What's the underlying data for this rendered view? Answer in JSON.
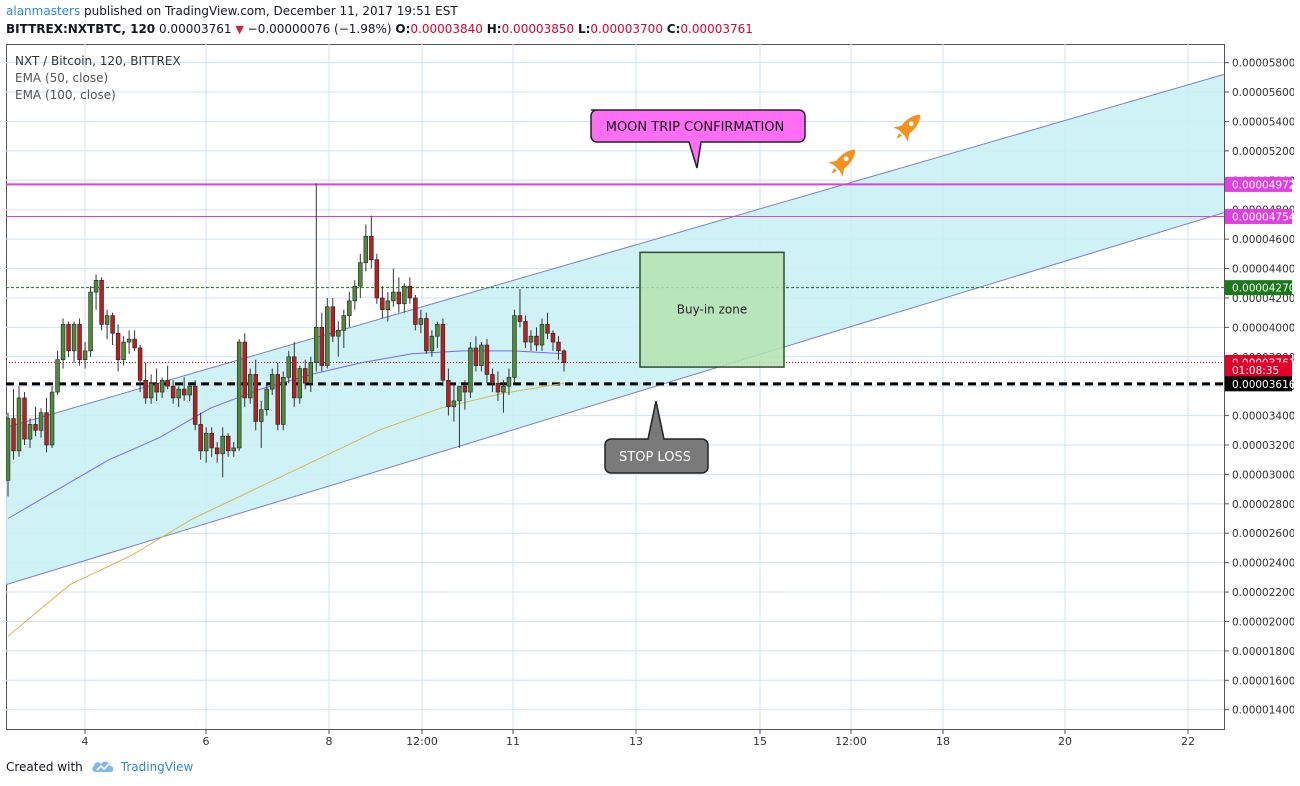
{
  "header": {
    "author": "alanmasters",
    "published": "published on TradingView.com, December 11, 2017 19:51 EST",
    "symbol": "BITTREX:NXTBTC, 120",
    "last": "0.00003761",
    "change": "−0.00000076 (−1.98%)",
    "o_label": "O:",
    "o": "0.00003840",
    "h_label": "H:",
    "h": "0.00003850",
    "l_label": "L:",
    "l": "0.00003700",
    "c_label": "C:",
    "c": "0.00003761"
  },
  "legend": {
    "pair": "NXT / Bitcoin, 120, BITTREX",
    "ema50": "EMA (50, close)",
    "ema100": "EMA (100, close)"
  },
  "annotations": {
    "moon": "MOON TRIP CONFIRMATION",
    "stop": "STOP LOSS",
    "buy": "Buy-in zone"
  },
  "footer": {
    "created_with": "Created with",
    "brand": "TradingView"
  },
  "colors": {
    "up": "#4e8a3a",
    "down": "#b8211f",
    "ema50": "#7b68ee",
    "ema100": "#d9b84a",
    "channel": "#7b7fc8",
    "channelFill": "#c9f1f4",
    "magenta": "#e040e0",
    "moonBox": "#ff6ef5",
    "stopBox": "#7a7a7a",
    "buyBox": "#b5e3b0",
    "rocket": "#f5921e"
  },
  "chart_data": {
    "type": "candlestick",
    "x_tick_labels": [
      "4",
      "6",
      "8",
      "12:00",
      "11",
      "13",
      "15",
      "12:00",
      "18",
      "20",
      "22"
    ],
    "y_ticks": [
      1.4e-05,
      1.6e-05,
      1.8e-05,
      2e-05,
      2.2e-05,
      2.4e-05,
      2.6e-05,
      2.8e-05,
      3e-05,
      3.2e-05,
      3.4e-05,
      3.6e-05,
      3.8e-05,
      4e-05,
      4.2e-05,
      4.4e-05,
      4.6e-05,
      4.8e-05,
      5e-05,
      5.2e-05,
      5.4e-05,
      5.6e-05,
      5.8e-05
    ],
    "y_tick_labels": [
      "0.00001400",
      "0.00001600",
      "0.00001800",
      "0.00002000",
      "0.00002200",
      "0.00002400",
      "0.00002600",
      "0.00002800",
      "0.00003000",
      "0.00003200",
      "0.00003400",
      "0.00003600",
      "0.00003800",
      "0.00004000",
      "0.00004200",
      "0.00004400",
      "0.00004600",
      "0.00004800",
      "0.00005000",
      "0.00005200",
      "0.00005400",
      "0.00005600",
      "0.00005800"
    ],
    "ylim": [
      1.33e-05,
      5.92e-05
    ],
    "price_labels": [
      {
        "text": "0.00004972",
        "value": 4.972e-05,
        "color": "#e040e0"
      },
      {
        "text": "0.00004754",
        "value": 4.754e-05,
        "color": "#e040e0"
      },
      {
        "text": "0.00004270",
        "value": 4.27e-05,
        "color": "#1a7a1a"
      },
      {
        "text": "0.00003761",
        "value": 3.761e-05,
        "color": "#e0002a"
      },
      {
        "text": "01:08:35",
        "value": 3.616e-05,
        "color": "#e0002a"
      },
      {
        "text": "0.00003616",
        "value": 3.616e-05,
        "color": "#000000"
      }
    ],
    "candles": [
      [
        2.96e-05,
        3.42e-05,
        2.85e-05,
        3.38e-05
      ],
      [
        3.38e-05,
        3.58e-05,
        3.1e-05,
        3.16e-05
      ],
      [
        3.16e-05,
        3.6e-05,
        3.12e-05,
        3.52e-05
      ],
      [
        3.52e-05,
        3.56e-05,
        3.2e-05,
        3.24e-05
      ],
      [
        3.24e-05,
        3.38e-05,
        3.18e-05,
        3.34e-05
      ],
      [
        3.34e-05,
        3.46e-05,
        3.26e-05,
        3.3e-05
      ],
      [
        3.3e-05,
        3.45e-05,
        3.25e-05,
        3.42e-05
      ],
      [
        3.42e-05,
        3.52e-05,
        3.15e-05,
        3.2e-05
      ],
      [
        3.2e-05,
        3.6e-05,
        3.18e-05,
        3.56e-05
      ],
      [
        3.56e-05,
        3.84e-05,
        3.54e-05,
        3.78e-05
      ],
      [
        3.78e-05,
        4.06e-05,
        3.72e-05,
        4.02e-05
      ],
      [
        4.02e-05,
        4.04e-05,
        3.8e-05,
        3.84e-05
      ],
      [
        3.84e-05,
        4.04e-05,
        3.76e-05,
        4.02e-05
      ],
      [
        4.02e-05,
        4.06e-05,
        3.74e-05,
        3.78e-05
      ],
      [
        3.78e-05,
        3.9e-05,
        3.72e-05,
        3.84e-05
      ],
      [
        3.84e-05,
        4.28e-05,
        3.8e-05,
        4.24e-05
      ],
      [
        4.24e-05,
        4.36e-05,
        4.12e-05,
        4.32e-05
      ],
      [
        4.32e-05,
        4.34e-05,
        3.98e-05,
        4.02e-05
      ],
      [
        4.02e-05,
        4.12e-05,
        3.92e-05,
        4.08e-05
      ],
      [
        4.08e-05,
        4.1e-05,
        3.88e-05,
        3.96e-05
      ],
      [
        3.96e-05,
        4.02e-05,
        3.7e-05,
        3.78e-05
      ],
      [
        3.78e-05,
        3.94e-05,
        3.74e-05,
        3.9e-05
      ],
      [
        3.9e-05,
        3.98e-05,
        3.82e-05,
        3.92e-05
      ],
      [
        3.92e-05,
        3.98e-05,
        3.84e-05,
        3.86e-05
      ],
      [
        3.86e-05,
        3.88e-05,
        3.56e-05,
        3.64e-05
      ],
      [
        3.64e-05,
        3.76e-05,
        3.48e-05,
        3.52e-05
      ],
      [
        3.52e-05,
        3.68e-05,
        3.48e-05,
        3.62e-05
      ],
      [
        3.62e-05,
        3.72e-05,
        3.5e-05,
        3.56e-05
      ],
      [
        3.56e-05,
        3.66e-05,
        3.52e-05,
        3.64e-05
      ],
      [
        3.64e-05,
        3.74e-05,
        3.58e-05,
        3.6e-05
      ],
      [
        3.6e-05,
        3.64e-05,
        3.48e-05,
        3.52e-05
      ],
      [
        3.52e-05,
        3.6e-05,
        3.46e-05,
        3.58e-05
      ],
      [
        3.58e-05,
        3.66e-05,
        3.5e-05,
        3.54e-05
      ],
      [
        3.54e-05,
        3.62e-05,
        3.5e-05,
        3.6e-05
      ],
      [
        3.6e-05,
        3.64e-05,
        3.3e-05,
        3.34e-05
      ],
      [
        3.34e-05,
        3.42e-05,
        3.1e-05,
        3.16e-05
      ],
      [
        3.16e-05,
        3.32e-05,
        3.08e-05,
        3.28e-05
      ],
      [
        3.28e-05,
        3.32e-05,
        3.12e-05,
        3.18e-05
      ],
      [
        3.18e-05,
        3.22e-05,
        3.08e-05,
        3.14e-05
      ],
      [
        3.14e-05,
        3.32e-05,
        2.98e-05,
        3.26e-05
      ],
      [
        3.26e-05,
        3.28e-05,
        3.12e-05,
        3.16e-05
      ],
      [
        3.16e-05,
        3.22e-05,
        3.12e-05,
        3.18e-05
      ],
      [
        3.18e-05,
        3.92e-05,
        3.16e-05,
        3.9e-05
      ],
      [
        3.9e-05,
        3.96e-05,
        3.46e-05,
        3.52e-05
      ],
      [
        3.52e-05,
        3.72e-05,
        3.48e-05,
        3.68e-05
      ],
      [
        3.68e-05,
        3.78e-05,
        3.3e-05,
        3.36e-05
      ],
      [
        3.36e-05,
        3.5e-05,
        3.18e-05,
        3.44e-05
      ],
      [
        3.44e-05,
        3.62e-05,
        3.4e-05,
        3.58e-05
      ],
      [
        3.58e-05,
        3.72e-05,
        3.54e-05,
        3.68e-05
      ],
      [
        3.68e-05,
        3.76e-05,
        3.3e-05,
        3.34e-05
      ],
      [
        3.34e-05,
        3.7e-05,
        3.3e-05,
        3.66e-05
      ],
      [
        3.66e-05,
        3.84e-05,
        3.62e-05,
        3.8e-05
      ],
      [
        3.8e-05,
        3.9e-05,
        3.46e-05,
        3.52e-05
      ],
      [
        3.52e-05,
        3.74e-05,
        3.48e-05,
        3.72e-05
      ],
      [
        3.72e-05,
        3.78e-05,
        3.58e-05,
        3.62e-05
      ],
      [
        3.62e-05,
        3.8e-05,
        3.56e-05,
        3.76e-05
      ],
      [
        3.76e-05,
        4.98e-05,
        3.7e-05,
        4e-05
      ],
      [
        4e-05,
        4.1e-05,
        3.7e-05,
        3.74e-05
      ],
      [
        3.74e-05,
        4.2e-05,
        3.72e-05,
        4.14e-05
      ],
      [
        4.14e-05,
        4.2e-05,
        3.9e-05,
        3.94e-05
      ],
      [
        3.94e-05,
        4.04e-05,
        3.8e-05,
        3.98e-05
      ],
      [
        3.98e-05,
        4.12e-05,
        3.86e-05,
        4.08e-05
      ],
      [
        4.08e-05,
        4.24e-05,
        4e-05,
        4.18e-05
      ],
      [
        4.18e-05,
        4.32e-05,
        4.12e-05,
        4.28e-05
      ],
      [
        4.28e-05,
        4.5e-05,
        4.2e-05,
        4.44e-05
      ],
      [
        4.44e-05,
        4.7e-05,
        4.38e-05,
        4.62e-05
      ],
      [
        4.62e-05,
        4.76e-05,
        4.4e-05,
        4.46e-05
      ],
      [
        4.46e-05,
        4.5e-05,
        4.16e-05,
        4.2e-05
      ],
      [
        4.2e-05,
        4.28e-05,
        4.06e-05,
        4.12e-05
      ],
      [
        4.12e-05,
        4.24e-05,
        4.04e-05,
        4.18e-05
      ],
      [
        4.18e-05,
        4.4e-05,
        4.14e-05,
        4.24e-05
      ],
      [
        4.24e-05,
        4.34e-05,
        4.1e-05,
        4.16e-05
      ],
      [
        4.16e-05,
        4.3e-05,
        4.1e-05,
        4.28e-05
      ],
      [
        4.28e-05,
        4.34e-05,
        4.16e-05,
        4.2e-05
      ],
      [
        4.2e-05,
        4.22e-05,
        3.98e-05,
        4.02e-05
      ],
      [
        4.02e-05,
        4.12e-05,
        3.96e-05,
        4.06e-05
      ],
      [
        4.06e-05,
        4.1e-05,
        3.82e-05,
        3.84e-05
      ],
      [
        3.84e-05,
        3.98e-05,
        3.8e-05,
        3.94e-05
      ],
      [
        3.94e-05,
        4.04e-05,
        3.86e-05,
        4.02e-05
      ],
      [
        4.02e-05,
        4.06e-05,
        3.6e-05,
        3.64e-05
      ],
      [
        3.64e-05,
        3.72e-05,
        3.4e-05,
        3.46e-05
      ],
      [
        3.46e-05,
        3.62e-05,
        3.36e-05,
        3.5e-05
      ],
      [
        3.5e-05,
        3.56e-05,
        3.18e-05,
        3.6e-05
      ],
      [
        3.6e-05,
        3.64e-05,
        3.44e-05,
        3.56e-05
      ],
      [
        3.56e-05,
        3.9e-05,
        3.52e-05,
        3.86e-05
      ],
      [
        3.86e-05,
        3.94e-05,
        3.7e-05,
        3.74e-05
      ],
      [
        3.74e-05,
        3.9e-05,
        3.7e-05,
        3.88e-05
      ],
      [
        3.88e-05,
        3.92e-05,
        3.62e-05,
        3.68e-05
      ],
      [
        3.68e-05,
        3.72e-05,
        3.56e-05,
        3.62e-05
      ],
      [
        3.62e-05,
        3.7e-05,
        3.5e-05,
        3.56e-05
      ],
      [
        3.56e-05,
        3.64e-05,
        3.42e-05,
        3.6e-05
      ],
      [
        3.6e-05,
        3.72e-05,
        3.54e-05,
        3.66e-05
      ],
      [
        3.66e-05,
        4.12e-05,
        3.62e-05,
        4.08e-05
      ],
      [
        4.08e-05,
        4.26e-05,
        4e-05,
        4.04e-05
      ],
      [
        4.04e-05,
        4.08e-05,
        3.86e-05,
        3.9e-05
      ],
      [
        3.9e-05,
        3.98e-05,
        3.84e-05,
        3.94e-05
      ],
      [
        3.94e-05,
        4e-05,
        3.84e-05,
        3.88e-05
      ],
      [
        3.88e-05,
        4.06e-05,
        3.84e-05,
        4.02e-05
      ],
      [
        4.02e-05,
        4.1e-05,
        3.92e-05,
        3.96e-05
      ],
      [
        3.96e-05,
        3.98e-05,
        3.84e-05,
        3.9e-05
      ],
      [
        3.9e-05,
        3.94e-05,
        3.78e-05,
        3.84e-05
      ],
      [
        3.84e-05,
        3.85e-05,
        3.7e-05,
        3.76e-05
      ]
    ],
    "ema50": [
      2.7e-05,
      2.9e-05,
      3.1e-05,
      3.25e-05,
      3.45e-05,
      3.58e-05,
      3.68e-05,
      3.76e-05,
      3.82e-05,
      3.84e-05,
      3.84e-05,
      3.82e-05
    ],
    "ema100": [
      1.9e-05,
      2.25e-05,
      2.45e-05,
      2.7e-05,
      2.9e-05,
      3.1e-05,
      3.3e-05,
      3.45e-05,
      3.55e-05,
      3.62e-05
    ],
    "channel": {
      "lower": [
        2.25e-05,
        4.78e-05
      ],
      "upper": [
        3.32e-05,
        5.72e-05
      ]
    },
    "levels": [
      4.972e-05,
      4.754e-05,
      4.27e-05,
      3.761e-05,
      3.616e-05
    ],
    "buy_zone": [
      3.73e-05,
      4.51e-05
    ]
  }
}
